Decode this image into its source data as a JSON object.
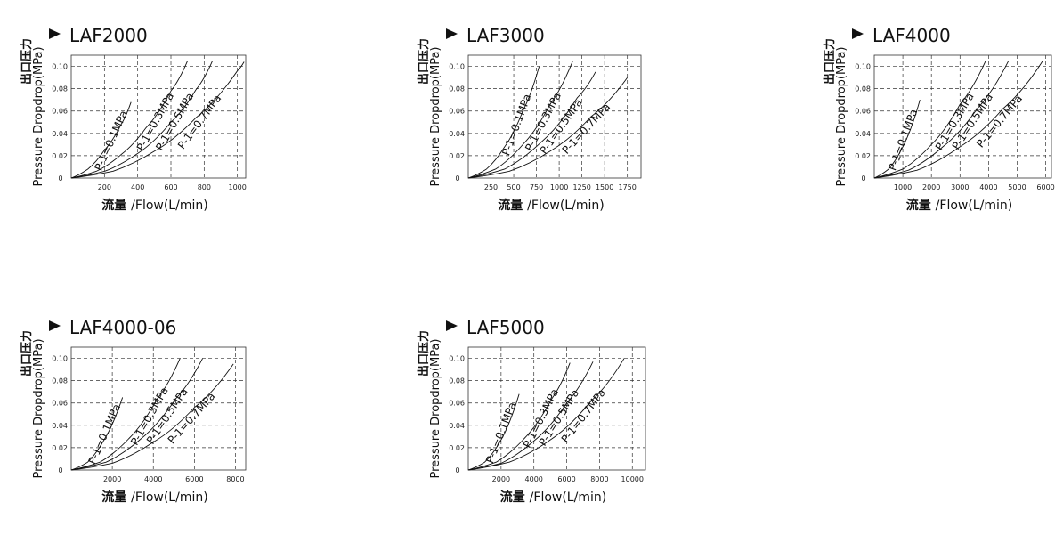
{
  "chart_data": [
    {
      "type": "line",
      "title": "LAF2000",
      "ylabel_cn": "出口压力",
      "ylabel_en": "Pressure Dropdrop(MPa)",
      "xlabel_cn": "流量",
      "xlabel_en": "/Flow(L/min)",
      "xlim": [
        0,
        1050
      ],
      "ylim": [
        0,
        0.11
      ],
      "xticks": [
        "200",
        "400",
        "600",
        "800",
        "1000"
      ],
      "xtick_values": [
        200,
        400,
        600,
        800,
        1000
      ],
      "yticks": [
        "0.02",
        "0.04",
        "0.06",
        "0.08",
        "0.10"
      ],
      "ytick_values": [
        0.02,
        0.04,
        0.06,
        0.08,
        0.1
      ],
      "origin_label": "0",
      "grid": true,
      "series": [
        {
          "name": "P-1=0.1MPa",
          "x": [
            0,
            100,
            200,
            300,
            360
          ],
          "y": [
            0,
            0.008,
            0.025,
            0.048,
            0.068
          ]
        },
        {
          "name": "P-1=0.3MPa",
          "x": [
            0,
            150,
            300,
            450,
            600,
            700
          ],
          "y": [
            0,
            0.006,
            0.021,
            0.045,
            0.078,
            0.105
          ]
        },
        {
          "name": "P-1=0.5MPa",
          "x": [
            0,
            200,
            400,
            600,
            750,
            850
          ],
          "y": [
            0,
            0.006,
            0.022,
            0.05,
            0.079,
            0.105
          ]
        },
        {
          "name": "P-1=0.7MPa",
          "x": [
            0,
            250,
            500,
            750,
            1000,
            1040
          ],
          "y": [
            0,
            0.006,
            0.024,
            0.054,
            0.096,
            0.104
          ]
        }
      ]
    },
    {
      "type": "line",
      "title": "LAF3000",
      "ylabel_cn": "出口压力",
      "ylabel_en": "Pressure Dropdrop(MPa)",
      "xlabel_cn": "流量",
      "xlabel_en": "/Flow(L/min)",
      "xlim": [
        0,
        1900
      ],
      "ylim": [
        0,
        0.11
      ],
      "xticks": [
        "250",
        "500",
        "750",
        "1000",
        "1250",
        "1500",
        "1750"
      ],
      "xtick_values": [
        250,
        500,
        750,
        1000,
        1250,
        1500,
        1750
      ],
      "yticks": [
        "0.02",
        "0.04",
        "0.06",
        "0.08",
        "0.10"
      ],
      "ytick_values": [
        0.02,
        0.04,
        0.06,
        0.08,
        0.1
      ],
      "origin_label": "0",
      "grid": true,
      "series": [
        {
          "name": "P-1=0.1MPa",
          "x": [
            0,
            200,
            400,
            600,
            780
          ],
          "y": [
            0,
            0.008,
            0.028,
            0.06,
            0.1
          ]
        },
        {
          "name": "P-1=0.3MPa",
          "x": [
            0,
            300,
            600,
            900,
            1150
          ],
          "y": [
            0,
            0.008,
            0.03,
            0.066,
            0.105
          ]
        },
        {
          "name": "P-1=0.5MPa",
          "x": [
            0,
            400,
            800,
            1200,
            1400
          ],
          "y": [
            0,
            0.008,
            0.032,
            0.072,
            0.095
          ]
        },
        {
          "name": "P-1=0.7MPa",
          "x": [
            0,
            450,
            900,
            1350,
            1750
          ],
          "y": [
            0,
            0.006,
            0.024,
            0.055,
            0.09
          ]
        }
      ]
    },
    {
      "type": "line",
      "title": "LAF4000",
      "ylabel_cn": "出口压力",
      "ylabel_en": "Pressure Dropdrop(MPa)",
      "xlabel_cn": "流量",
      "xlabel_en": "/Flow(L/min)",
      "xlim": [
        0,
        6200
      ],
      "ylim": [
        0,
        0.11
      ],
      "xticks": [
        "1000",
        "2000",
        "3000",
        "4000",
        "5000",
        "6000"
      ],
      "xtick_values": [
        1000,
        2000,
        3000,
        4000,
        5000,
        6000
      ],
      "yticks": [
        "0.02",
        "0.04",
        "0.06",
        "0.08",
        "0.10"
      ],
      "ytick_values": [
        0.02,
        0.04,
        0.06,
        0.08,
        0.1
      ],
      "origin_label": "0",
      "grid": true,
      "series": [
        {
          "name": "P-1=0.1MPa",
          "x": [
            0,
            500,
            1000,
            1600
          ],
          "y": [
            0,
            0.008,
            0.028,
            0.07
          ]
        },
        {
          "name": "P-1=0.3MPa",
          "x": [
            0,
            1000,
            2000,
            3000,
            3900
          ],
          "y": [
            0,
            0.008,
            0.03,
            0.066,
            0.105
          ]
        },
        {
          "name": "P-1=0.5MPa",
          "x": [
            0,
            1200,
            2400,
            3600,
            4700
          ],
          "y": [
            0,
            0.007,
            0.028,
            0.062,
            0.105
          ]
        },
        {
          "name": "P-1=0.7MPa",
          "x": [
            0,
            1500,
            3000,
            4500,
            5900
          ],
          "y": [
            0,
            0.007,
            0.028,
            0.062,
            0.105
          ]
        }
      ]
    },
    {
      "type": "line",
      "title": "LAF4000-06",
      "ylabel_cn": "出口压力",
      "ylabel_en": "Pressure Dropdrop(MPa)",
      "xlabel_cn": "流量",
      "xlabel_en": "/Flow(L/min)",
      "xlim": [
        0,
        8500
      ],
      "ylim": [
        0,
        0.11
      ],
      "xticks": [
        "2000",
        "4000",
        "6000",
        "8000"
      ],
      "xtick_values": [
        2000,
        4000,
        6000,
        8000
      ],
      "yticks": [
        "0.02",
        "0.04",
        "0.06",
        "0.08",
        "0.10"
      ],
      "ytick_values": [
        0.02,
        0.04,
        0.06,
        0.08,
        0.1
      ],
      "origin_label": "0",
      "grid": true,
      "series": [
        {
          "name": "P-1=0.1MPa",
          "x": [
            0,
            800,
            1600,
            2500
          ],
          "y": [
            0,
            0.007,
            0.027,
            0.065
          ]
        },
        {
          "name": "P-1=0.3MPa",
          "x": [
            0,
            1400,
            2800,
            4200,
            5300
          ],
          "y": [
            0,
            0.007,
            0.028,
            0.064,
            0.1
          ]
        },
        {
          "name": "P-1=0.5MPa",
          "x": [
            0,
            1700,
            3400,
            5100,
            6400
          ],
          "y": [
            0,
            0.007,
            0.028,
            0.064,
            0.1
          ]
        },
        {
          "name": "P-1=0.7MPa",
          "x": [
            0,
            2000,
            4000,
            6000,
            7900
          ],
          "y": [
            0,
            0.006,
            0.025,
            0.056,
            0.095
          ]
        }
      ]
    },
    {
      "type": "line",
      "title": "LAF5000",
      "ylabel_cn": "出口压力",
      "ylabel_en": "Pressure Dropdrop(MPa)",
      "xlabel_cn": "流量",
      "xlabel_en": "/Flow(L/min)",
      "xlim": [
        0,
        10800
      ],
      "ylim": [
        0,
        0.11
      ],
      "xticks": [
        "2000",
        "4000",
        "6000",
        "8000",
        "10000"
      ],
      "xtick_values": [
        2000,
        4000,
        6000,
        8000,
        10000
      ],
      "yticks": [
        "0.02",
        "0.04",
        "0.06",
        "0.08",
        "0.10"
      ],
      "ytick_values": [
        0.02,
        0.04,
        0.06,
        0.08,
        0.1
      ],
      "origin_label": "0",
      "grid": true,
      "series": [
        {
          "name": "P-1=0.1MPa",
          "x": [
            0,
            1000,
            2000,
            3100
          ],
          "y": [
            0,
            0.007,
            0.027,
            0.068
          ]
        },
        {
          "name": "P-1=0.3MPa",
          "x": [
            0,
            1700,
            3400,
            5100,
            6200
          ],
          "y": [
            0,
            0.007,
            0.028,
            0.064,
            0.096
          ]
        },
        {
          "name": "P-1=0.5MPa",
          "x": [
            0,
            2000,
            4000,
            6000,
            7600
          ],
          "y": [
            0,
            0.006,
            0.026,
            0.06,
            0.097
          ]
        },
        {
          "name": "P-1=0.7MPa",
          "x": [
            0,
            2500,
            5000,
            7500,
            9500
          ],
          "y": [
            0,
            0.007,
            0.027,
            0.062,
            0.1
          ]
        }
      ]
    }
  ]
}
